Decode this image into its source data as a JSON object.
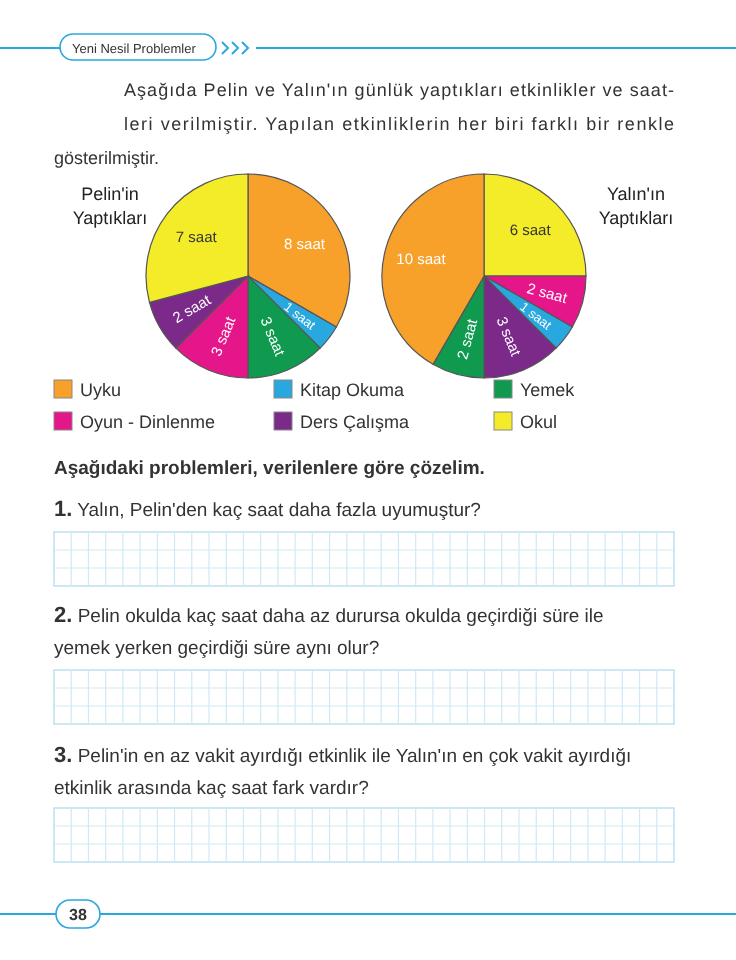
{
  "chart_data": [
    {
      "type": "other",
      "annotations": [
        "Yeni Nesil Problemler",
        "Aşağıda Pelin ve Yalın'ın günlük yaptıkları etkinlikler ve saat-",
        "leri verilmiştir. Yapılan etkinliklerin her biri farklı bir renkle",
        "gösterilmiştir."
      ]
    },
    {
      "type": "pie",
      "title": "Pelin'in Yaptıkları",
      "categories": [
        "Uyku",
        "Kitap Okuma",
        "Yemek",
        "Oyun - Dinlenme",
        "Ders Çalışma",
        "Okul"
      ],
      "values": [
        8,
        1,
        3,
        3,
        2,
        7
      ],
      "colors": [
        "#f7a12b",
        "#29a8e0",
        "#0f9a4f",
        "#e5158a",
        "#7b2a8a",
        "#f4ec29"
      ],
      "value_labels": [
        "8 saat",
        "1 saat",
        "3 saat",
        "3 saat",
        "2 saat",
        "7 saat"
      ],
      "legend": "bottom"
    },
    {
      "type": "pie",
      "title": "Yalın'ın Yaptıkları",
      "categories": [
        null,
        null,
        null,
        null,
        null,
        null
      ],
      "values": [
        6,
        2,
        1,
        3,
        2,
        10
      ],
      "colors": [
        "#f4ec29",
        "#e5158a",
        "#29a8e0",
        "#7b2a8a",
        "#0f9a4f",
        "#f7a12b"
      ],
      "value_labels": [
        "6 saat",
        "2 saat",
        "1 saat",
        "3 saat",
        "2 saat",
        "10 saat"
      ]
    },
    {
      "type": "other",
      "annotations": [
        "Aşağıdaki problemleri, verilenlere göre çözelim.",
        "1. Yalın, Pelin'den kaç saat daha fazla uyumuştur?",
        "2. Pelin okulda kaç saat daha az durursa okulda geçirdiği süre ile",
        "yemek yerken geçirdiği süre aynı olur?",
        "3. Pelin'in en az vakit ayırdığı etkinlik ile Yalın'ın en çok vakit ayırdığı",
        "etkinlik arasında kaç saat fark vardır?",
        "38"
      ]
    }
  ]
}
